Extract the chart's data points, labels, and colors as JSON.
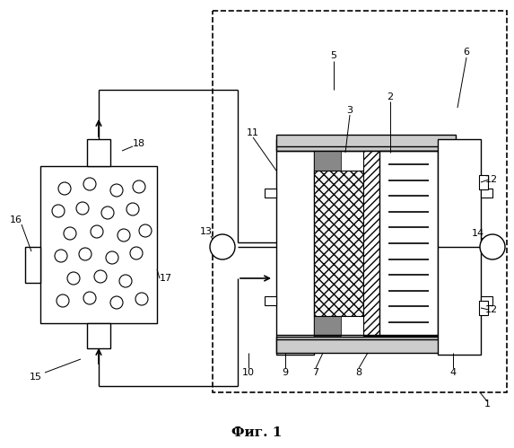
{
  "bg_color": "#ffffff",
  "line_color": "#000000",
  "title": "Фиг. 1",
  "title_fontsize": 11,
  "gray_dark": "#888888",
  "gray_med": "#aaaaaa",
  "gray_light": "#dddddd"
}
